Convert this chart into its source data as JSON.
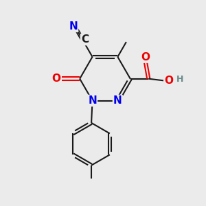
{
  "bg_color": "#ebebeb",
  "bond_color": "#1a1a1a",
  "bond_width": 1.5,
  "atom_colors": {
    "C": "#1a1a1a",
    "N": "#0000ee",
    "O": "#ee0000",
    "H": "#6a8a8a"
  },
  "font_size_atom": 11,
  "font_size_H": 9
}
